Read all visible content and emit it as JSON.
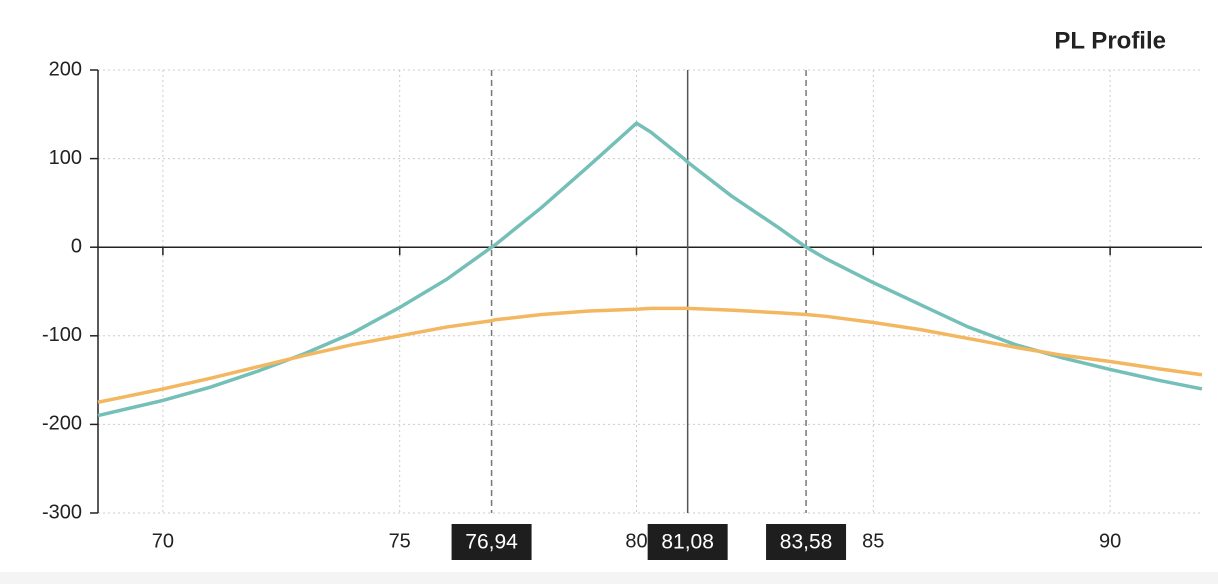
{
  "chart_data": {
    "type": "line",
    "title": "PL Profile",
    "x": [
      68.63,
      70,
      71,
      72,
      73,
      74,
      75,
      76,
      76.94,
      77,
      78,
      79,
      80,
      80.3,
      81,
      81.08,
      82,
      83,
      83.58,
      84,
      85,
      86,
      87,
      88,
      89,
      90,
      91,
      91.94
    ],
    "series": [
      {
        "color": "#74bfb8",
        "values": [
          -190,
          -173,
          -158,
          -140,
          -120,
          -97,
          -68,
          -36,
          0,
          2,
          45,
          92,
          140,
          130,
          100,
          96,
          58,
          22,
          0,
          -13,
          -40,
          -65,
          -90,
          -110,
          -125,
          -138,
          -150,
          -160
        ]
      },
      {
        "color": "#f2b760",
        "values": [
          -175,
          -160,
          -148,
          -135,
          -122,
          -110,
          -100,
          -90,
          -83,
          -82,
          -76,
          -72,
          -70,
          -69,
          -69,
          -69,
          -71,
          -74,
          -76,
          -78,
          -85,
          -93,
          -103,
          -113,
          -122,
          -129,
          -137,
          -144
        ]
      }
    ],
    "xlim": [
      68.63,
      91.94
    ],
    "ylim": [
      -300,
      200
    ],
    "xticks": [
      70,
      75,
      80,
      85,
      90
    ],
    "yticks": [
      -300,
      -200,
      -100,
      0,
      100,
      200
    ],
    "grid": true,
    "markers": [
      {
        "value": 76.94,
        "label": "76,94",
        "style": "dashed"
      },
      {
        "value": 81.08,
        "label": "81,08",
        "style": "solid"
      },
      {
        "value": 83.58,
        "label": "83,58",
        "style": "dashed"
      }
    ]
  }
}
